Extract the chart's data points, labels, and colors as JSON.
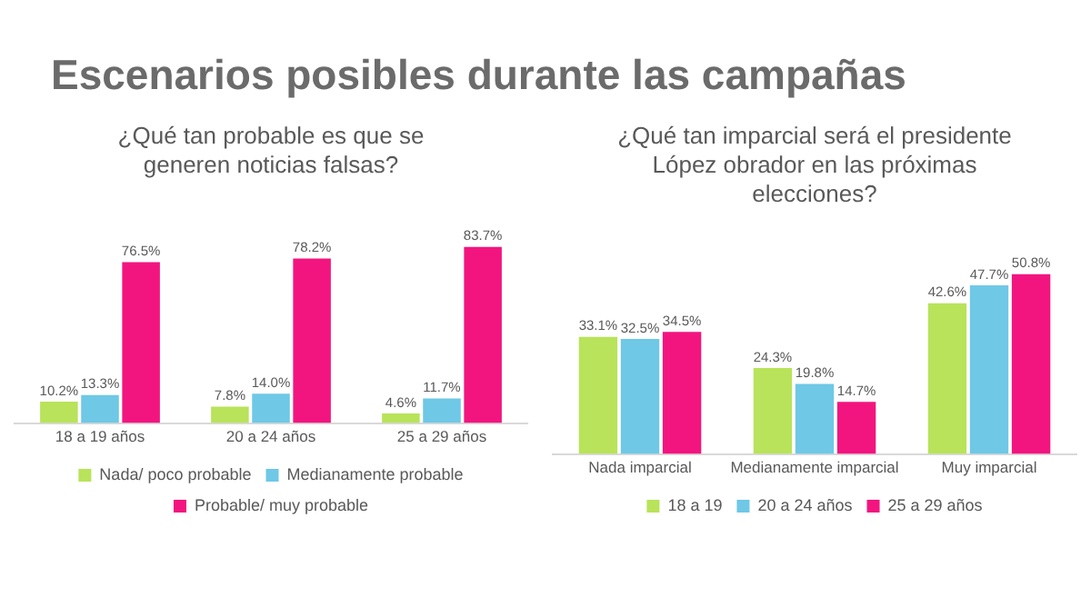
{
  "chart_data": [
    {
      "type": "bar",
      "title": "¿Qué tan probable es que se generen noticias falsas?",
      "annotations": [
        "Escenarios posibles durante las campañas"
      ],
      "categories": [
        "18 a 19 años",
        "20 a 24 años",
        "25 a 29 años"
      ],
      "tick_labels": "x",
      "legend": "bottom",
      "series": [
        {
          "name": "Nada/ poco probable",
          "color": "#b8e35a",
          "values": [
            10.2,
            7.8,
            4.6
          ],
          "value_labels": [
            "10.2%",
            "7.8%",
            "4.6%"
          ]
        },
        {
          "name": "Medianamente probable",
          "color": "#6ec8e6",
          "values": [
            13.3,
            14.0,
            11.7
          ],
          "value_labels": [
            "13.3%",
            "14.0%",
            "11.7%"
          ]
        },
        {
          "name": "Probable/ muy probable",
          "color": "#f2157f",
          "values": [
            76.5,
            78.2,
            83.7
          ],
          "value_labels": [
            "76.5%",
            "78.2%",
            "83.7%"
          ]
        }
      ]
    },
    {
      "type": "bar",
      "title": "¿Qué tan imparcial será el presidente López obrador en las próximas elecciones?",
      "categories": [
        "Nada imparcial",
        "Medianamente imparcial",
        "Muy imparcial"
      ],
      "tick_labels": "x",
      "legend": "bottom",
      "series": [
        {
          "name": "18 a 19",
          "color": "#b8e35a",
          "values": [
            33.1,
            24.3,
            42.6
          ],
          "value_labels": [
            "33.1%",
            "24.3%",
            "42.6%"
          ]
        },
        {
          "name": "20 a 24 años",
          "color": "#6ec8e6",
          "values": [
            32.5,
            19.8,
            47.7
          ],
          "value_labels": [
            "32.5%",
            "19.8%",
            "47.7%"
          ]
        },
        {
          "name": "25 a 29 años",
          "color": "#f2157f",
          "values": [
            34.5,
            14.7,
            50.8
          ],
          "value_labels": [
            "34.5%",
            "14.7%",
            "50.8%"
          ]
        }
      ]
    }
  ]
}
